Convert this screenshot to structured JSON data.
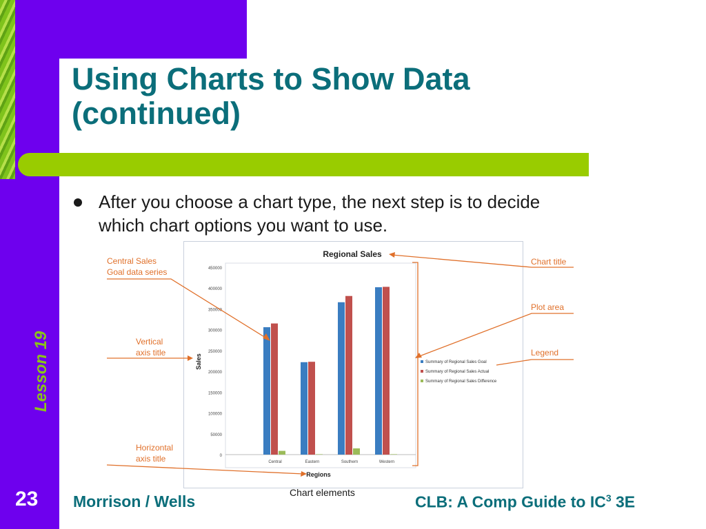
{
  "slide": {
    "title_line1": "Using Charts to Show Data",
    "title_line2": "(continued)",
    "bullet_line1": "After you choose a chart type, the next step is to decide",
    "bullet_line2": "which chart options you want to use.",
    "side_label": "Lesson 19",
    "page_number": "23",
    "footer_left": "Morrison / Wells",
    "footer_right_pre": "CLB: A Comp Guide to IC",
    "footer_right_sup": "3",
    "footer_right_post": " 3E",
    "caption": "Chart elements"
  },
  "colors": {
    "sidebar": "#6E00EE",
    "accent_green": "#99CC00",
    "title_teal": "#0B6E7A",
    "callout_orange": "#E0702A"
  },
  "callouts": {
    "series_line1": "Central Sales",
    "series_line2": "Goal data series",
    "vaxis_line1": "Vertical",
    "vaxis_line2": "axis title",
    "haxis_line1": "Horizontal",
    "haxis_line2": "axis title",
    "chart_title": "Chart title",
    "plot_area": "Plot area",
    "legend": "Legend"
  },
  "chart_data": {
    "type": "bar",
    "title": "Regional Sales",
    "xlabel": "Regions",
    "ylabel": "Sales",
    "categories": [
      "Central",
      "Eastern",
      "Southern",
      "Western"
    ],
    "ylim": [
      0,
      450000
    ],
    "yticks": [
      0,
      50000,
      100000,
      150000,
      200000,
      250000,
      300000,
      350000,
      400000,
      450000
    ],
    "grid": false,
    "legend_position": "right",
    "series": [
      {
        "name": "Summary of Regional Sales Goal",
        "color": "#3A7DC1",
        "values": [
          306000,
          222000,
          366000,
          402000
        ]
      },
      {
        "name": "Summary of Regional Sales Actual",
        "color": "#C0504D",
        "values": [
          315000,
          223000,
          381000,
          403000
        ]
      },
      {
        "name": "Summary of Regional Sales Difference",
        "color": "#9BBB59",
        "values": [
          9000,
          1000,
          15000,
          1000
        ]
      }
    ]
  }
}
